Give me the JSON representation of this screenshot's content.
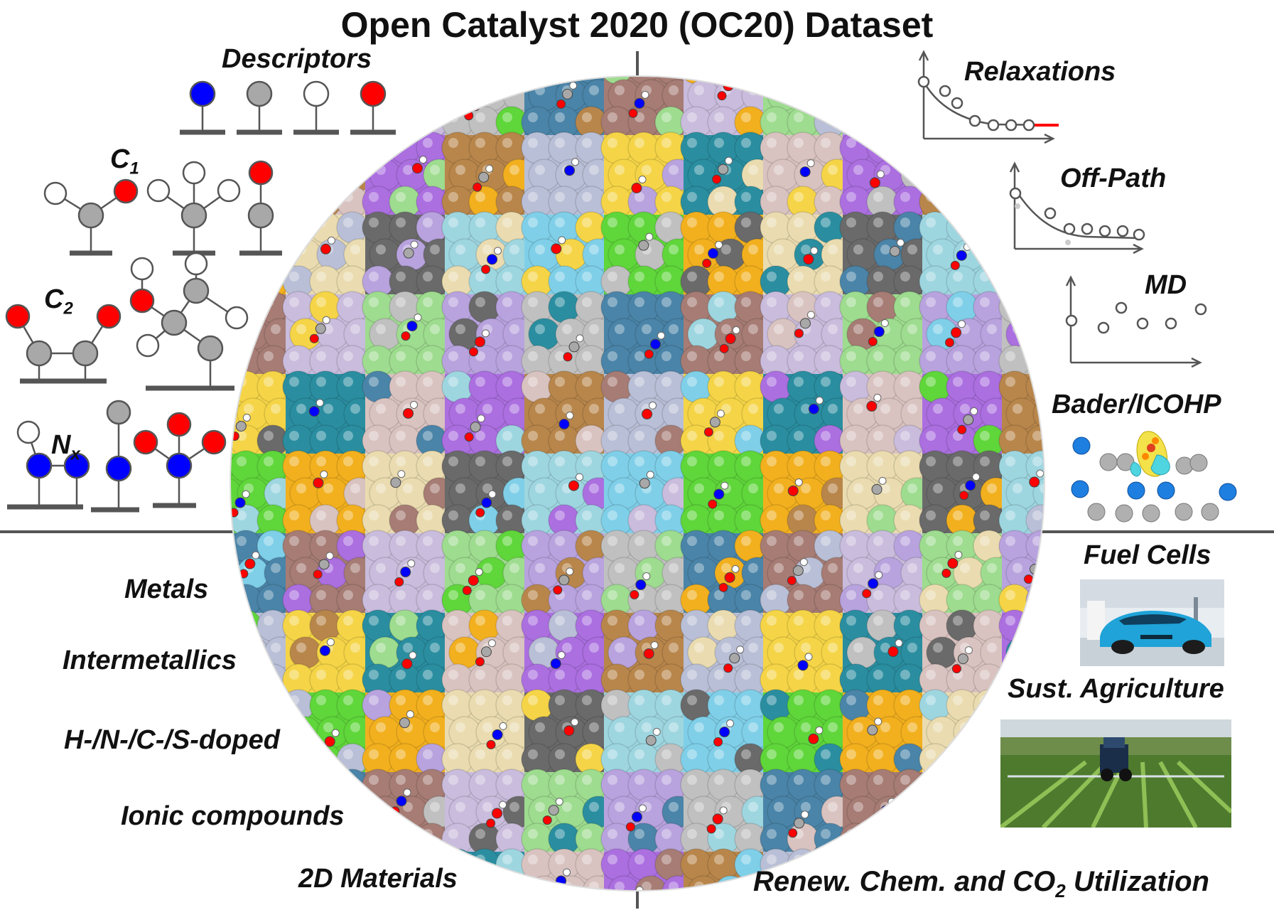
{
  "title": "Open Catalyst 2020 (OC20) Dataset",
  "descriptors": {
    "label": "Descriptors",
    "c1_main": "C",
    "c1_sub": "1",
    "c2_main": "C",
    "c2_sub": "2",
    "nx_main": "N",
    "nx_sub": "x"
  },
  "methods": [
    "Relaxations",
    "Off-Path",
    "MD",
    "Bader/ICOHP"
  ],
  "materials": [
    "Metals",
    "Intermetallics",
    "H-/N-/C-/S-doped",
    "Ionic compounds",
    "2D Materials"
  ],
  "applications": {
    "fuel_cells": "Fuel Cells",
    "agriculture": "Sust. Agriculture",
    "renew_main": "Renew. Chem. and CO",
    "renew_sub": "2",
    "renew_tail": " Utilization"
  },
  "atom_colors": {
    "carbon": "#a8a8a8",
    "oxygen": "#ff0000",
    "nitrogen": "#0000ff",
    "hydrogen": "#ffffff"
  },
  "tile_palette": [
    "#c9bcdc",
    "#9ed6e0",
    "#f5d547",
    "#9edc8f",
    "#7fcfe8",
    "#2a8ea0",
    "#b8a3de",
    "#5fd63a",
    "#d9c3c0",
    "#c0c0c0",
    "#f2b01e",
    "#ab6fe0",
    "#4a84a8",
    "#eadcb0",
    "#b8864b",
    "#a67c74",
    "#6a6a6a",
    "#b9bfd6"
  ]
}
